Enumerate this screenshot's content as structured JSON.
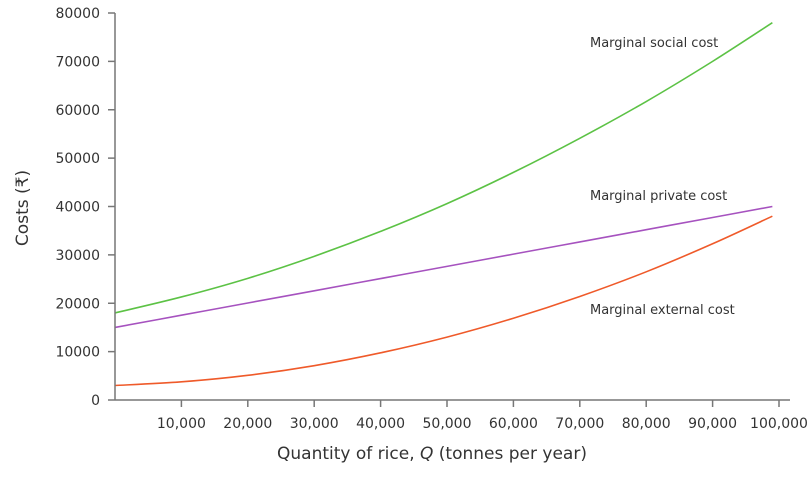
{
  "chart_data": {
    "type": "line",
    "xlabel_parts": [
      "Quantity of rice, ",
      "Q",
      " (tonnes per year)"
    ],
    "ylabel": "Costs (₹)",
    "xlim": [
      0,
      100000
    ],
    "ylim": [
      0,
      80000
    ],
    "x_ticks": [
      10000,
      20000,
      30000,
      40000,
      50000,
      60000,
      70000,
      80000,
      90000,
      100000
    ],
    "x_tick_labels": [
      "10,000",
      "20,000",
      "30,000",
      "40,000",
      "50,000",
      "60,000",
      "70,000",
      "80,000",
      "90,000",
      "100,000"
    ],
    "y_ticks": [
      0,
      10000,
      20000,
      30000,
      40000,
      50000,
      60000,
      70000,
      80000
    ],
    "y_tick_labels": [
      "0",
      "10000",
      "20000",
      "30000",
      "40000",
      "50000",
      "60000",
      "70000",
      "80000"
    ],
    "grid": false,
    "x": [
      0,
      10000,
      20000,
      30000,
      40000,
      50000,
      60000,
      70000,
      80000,
      90000,
      99000
    ],
    "series": [
      {
        "name": "Marginal social cost",
        "color": "#5cc245",
        "values": [
          18000,
          21300,
          25150,
          29700,
          34850,
          40600,
          47050,
          54100,
          61700,
          70000,
          78000
        ]
      },
      {
        "name": "Marginal private cost",
        "color": "#a652bf",
        "values": [
          15000,
          17525,
          20050,
          22576,
          25101,
          27626,
          30152,
          32677,
          35202,
          37727,
          40000
        ]
      },
      {
        "name": "Marginal external cost",
        "color": "#ef5a2a",
        "values": [
          3000,
          3750,
          5100,
          7100,
          9750,
          13000,
          16900,
          21400,
          26500,
          32300,
          38000
        ]
      }
    ]
  }
}
